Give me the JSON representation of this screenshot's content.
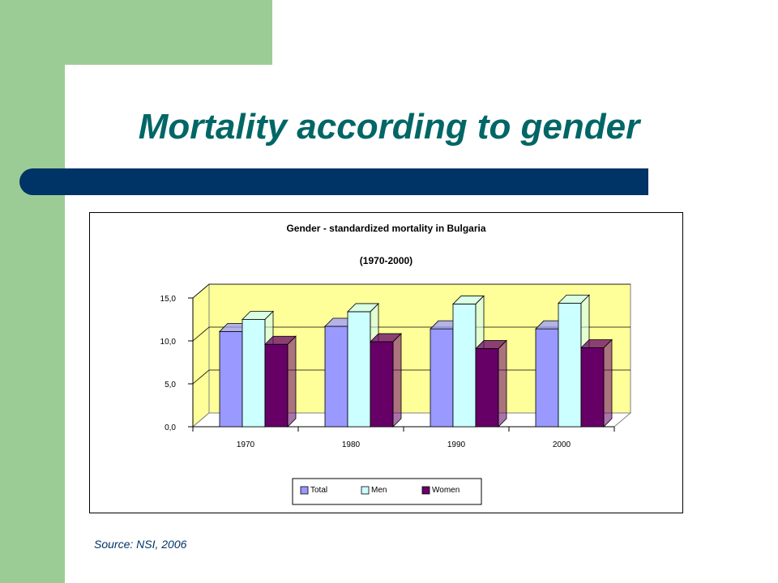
{
  "slide": {
    "title": "Mortality according to gender",
    "source": "Source: NSI, 2006"
  },
  "colors": {
    "background_green": "#9ccc95",
    "title_color": "#006666",
    "bar_navy": "#003366",
    "plot_wall": "#ffff99"
  },
  "chart_data": {
    "type": "bar",
    "title": "Gender - standardized mortality in Bulgaria",
    "subtitle": "(1970-2000)",
    "categories": [
      "1970",
      "1980",
      "1990",
      "2000"
    ],
    "series": [
      {
        "name": "Total",
        "values": [
          11.1,
          11.7,
          11.4,
          11.4
        ],
        "color": "#9999ff"
      },
      {
        "name": "Men",
        "values": [
          12.5,
          13.4,
          14.3,
          14.4
        ],
        "color": "#ccffff"
      },
      {
        "name": "Women",
        "values": [
          9.6,
          9.9,
          9.1,
          9.2
        ],
        "color": "#660066"
      }
    ],
    "yticks": [
      "0,0",
      "5,0",
      "10,0",
      "15,0"
    ],
    "ylim": [
      0,
      15
    ],
    "grid": true,
    "legend": "bottom",
    "three_d": true
  }
}
